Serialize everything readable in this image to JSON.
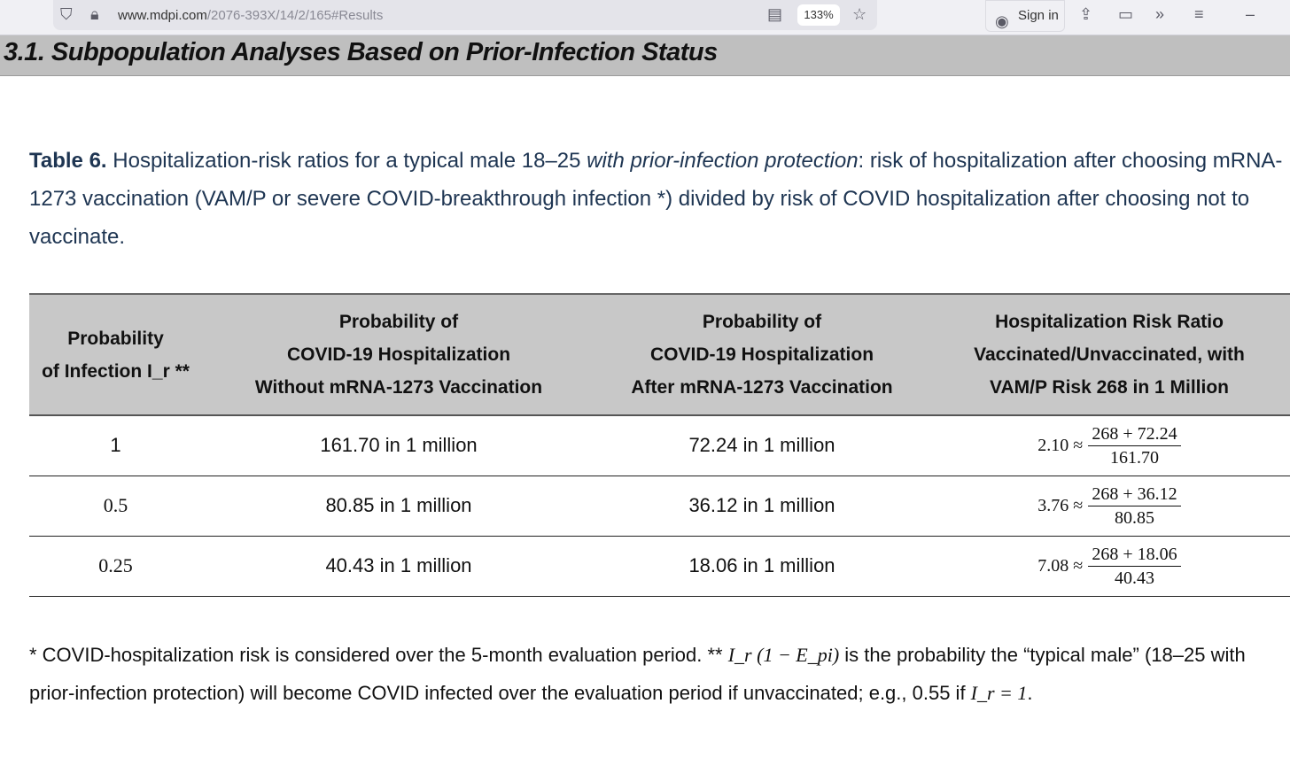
{
  "browser": {
    "url_domain": "www.mdpi.com",
    "url_path": "/2076-393X/14/2/165#Results",
    "zoom": "133%",
    "sign_in": "Sign in"
  },
  "section": {
    "title": "3.1. Subpopulation Analyses Based on Prior-Infection Status"
  },
  "caption": {
    "label": "Table 6.",
    "text1": " Hospitalization-risk ratios for a typical male 18–25 ",
    "italic": "with prior-infection protection",
    "text2": ": risk of hospitalization after choosing mRNA-1273 vaccination (VAM/P or severe COVID-breakthrough infection *) divided by risk of COVID hospitalization after choosing not to vaccinate."
  },
  "table": {
    "headers": [
      {
        "l1": "Probability",
        "l2": "of Infection I_r **"
      },
      {
        "l1": "Probability of",
        "l2": "COVID-19 Hospitalization",
        "l3": "Without mRNA-1273 Vaccination"
      },
      {
        "l1": "Probability of",
        "l2": "COVID-19 Hospitalization",
        "l3": "After mRNA-1273 Vaccination"
      },
      {
        "l1": "Hospitalization Risk Ratio",
        "l2": "Vaccinated/Unvaccinated, with",
        "l3": "VAM/P Risk 268 in 1 Million"
      }
    ],
    "rows": [
      {
        "p": "1",
        "without": "161.70 in 1 million",
        "after": "72.24 in 1 million",
        "ratio": "2.10 ≈",
        "num": "268 + 72.24",
        "den": "161.70"
      },
      {
        "p": "0.5",
        "without": "80.85 in 1 million",
        "after": "36.12 in 1 million",
        "ratio": "3.76 ≈",
        "num": "268 + 36.12",
        "den": "80.85"
      },
      {
        "p": "0.25",
        "without": "40.43 in 1 million",
        "after": "18.06 in 1 million",
        "ratio": "7.08 ≈",
        "num": "268 + 18.06",
        "den": "40.43"
      }
    ]
  },
  "footnote": {
    "t1": "* COVID-hospitalization risk is considered over the 5-month evaluation period. ** ",
    "m1": "I_r (1 − E_pi)",
    "t2": " is the probability the “typical male” (18–25 with prior-infection protection) will become COVID infected over the evaluation period if unvaccinated; e.g., 0.55 if ",
    "m2": "I_r = 1",
    "t3": "."
  }
}
